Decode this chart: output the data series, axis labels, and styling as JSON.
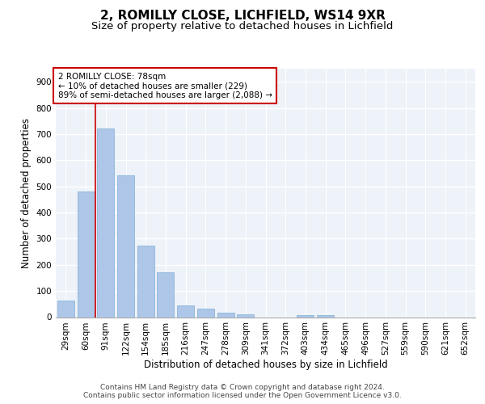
{
  "title1": "2, ROMILLY CLOSE, LICHFIELD, WS14 9XR",
  "title2": "Size of property relative to detached houses in Lichfield",
  "xlabel": "Distribution of detached houses by size in Lichfield",
  "ylabel": "Number of detached properties",
  "categories": [
    "29sqm",
    "60sqm",
    "91sqm",
    "122sqm",
    "154sqm",
    "185sqm",
    "216sqm",
    "247sqm",
    "278sqm",
    "309sqm",
    "341sqm",
    "372sqm",
    "403sqm",
    "434sqm",
    "465sqm",
    "496sqm",
    "527sqm",
    "559sqm",
    "590sqm",
    "621sqm",
    "652sqm"
  ],
  "values": [
    62,
    480,
    720,
    543,
    272,
    170,
    46,
    31,
    17,
    12,
    0,
    0,
    8,
    7,
    0,
    0,
    0,
    0,
    0,
    0,
    0
  ],
  "bar_color": "#aec6e8",
  "bar_edge_color": "#7bafd4",
  "vline_color": "#cc0000",
  "annotation_text": "2 ROMILLY CLOSE: 78sqm\n← 10% of detached houses are smaller (229)\n89% of semi-detached houses are larger (2,088) →",
  "annotation_box_color": "#ffffff",
  "annotation_box_edge_color": "#cc0000",
  "ylim": [
    0,
    950
  ],
  "yticks": [
    0,
    100,
    200,
    300,
    400,
    500,
    600,
    700,
    800,
    900
  ],
  "background_color": "#eef2f9",
  "grid_color": "#ffffff",
  "footer": "Contains HM Land Registry data © Crown copyright and database right 2024.\nContains public sector information licensed under the Open Government Licence v3.0.",
  "title1_fontsize": 11,
  "title2_fontsize": 9.5,
  "xlabel_fontsize": 8.5,
  "ylabel_fontsize": 8.5,
  "tick_fontsize": 7.5,
  "footer_fontsize": 6.5,
  "ann_fontsize": 7.5
}
